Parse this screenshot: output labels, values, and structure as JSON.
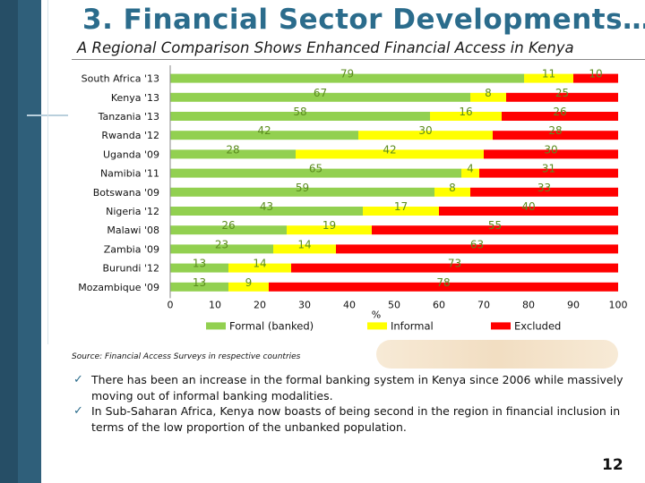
{
  "slide": {
    "title": "3. Financial Sector Developments…",
    "subtitle": "A Regional Comparison Shows Enhanced Financial Access in Kenya",
    "source": "Source: Financial Access Surveys in respective countries",
    "bullets": [
      "There has been an increase in the formal banking system in Kenya since 2006 while massively moving out of informal banking modalities.",
      "In Sub-Saharan Africa, Kenya now boasts of being second in the region in financial inclusion in terms of the low proportion of the unbanked population."
    ],
    "page_number": "12"
  },
  "chart_data": {
    "type": "bar",
    "orientation": "horizontal",
    "stacked": true,
    "categories": [
      "South Africa '13",
      "Kenya '13",
      "Tanzania '13",
      "Rwanda '12",
      "Uganda '09",
      "Namibia '11",
      "Botswana '09",
      "Nigeria '12",
      "Malawi '08",
      "Zambia '09",
      "Burundi '12",
      "Mozambique '09"
    ],
    "series": [
      {
        "name": "Formal (banked)",
        "color": "#92d050",
        "values": [
          79,
          67,
          58,
          42,
          28,
          65,
          59,
          43,
          26,
          23,
          13,
          13
        ]
      },
      {
        "name": "Informal",
        "color": "#ffff00",
        "values": [
          11,
          8,
          16,
          30,
          42,
          4,
          8,
          17,
          19,
          14,
          14,
          9
        ]
      },
      {
        "name": "Excluded",
        "color": "#ff0000",
        "values": [
          10,
          25,
          26,
          28,
          30,
          31,
          33,
          40,
          55,
          63,
          73,
          78
        ]
      }
    ],
    "x_ticks": [
      "0",
      "10",
      "20",
      "30",
      "40",
      "50",
      "60",
      "70",
      "80",
      "90",
      "100"
    ],
    "xlabel": "%",
    "xlim": [
      0,
      100
    ],
    "label_color": "#5b8c1f",
    "grid": false,
    "legend_position": "bottom"
  }
}
